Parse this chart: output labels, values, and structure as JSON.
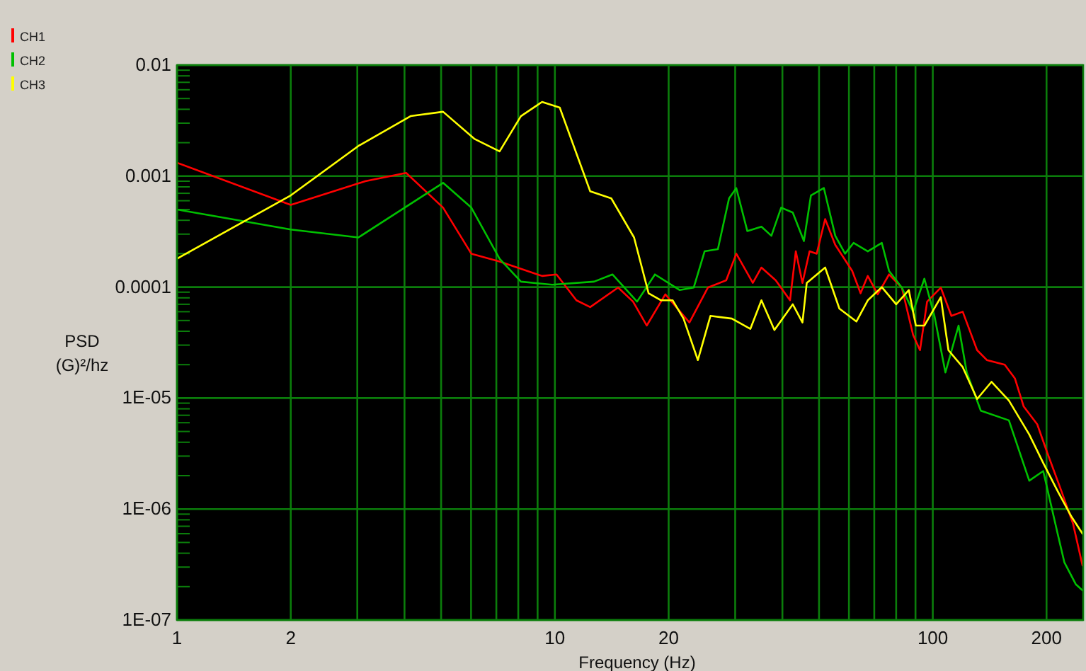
{
  "chart_data": {
    "type": "line",
    "xlabel": "Frequency (Hz)",
    "ylabel": "PSD\n(G)²/hz",
    "log": "xy",
    "grid": true,
    "legend": "top left",
    "xlim": [
      1,
      250
    ],
    "ylim": [
      1e-07,
      0.01
    ],
    "xticks": [
      1,
      2,
      {
        "value": 3,
        "label": null
      },
      {
        "value": 4,
        "label": null
      },
      {
        "value": 5,
        "label": null
      },
      {
        "value": 6,
        "label": null
      },
      {
        "value": 7,
        "label": null
      },
      {
        "value": 8,
        "label": null
      },
      {
        "value": 9,
        "label": null
      },
      10,
      20,
      {
        "value": 30,
        "label": null
      },
      {
        "value": 40,
        "label": null
      },
      {
        "value": 50,
        "label": null
      },
      {
        "value": 60,
        "label": null
      },
      {
        "value": 70,
        "label": null
      },
      {
        "value": 80,
        "label": null
      },
      {
        "value": 90,
        "label": null
      },
      100,
      200
    ],
    "yticks": [
      {
        "value": 1e-07,
        "label": "1E-07"
      },
      {
        "value": 2e-07,
        "label": null
      },
      {
        "value": 3e-07,
        "label": null
      },
      {
        "value": 4e-07,
        "label": null
      },
      {
        "value": 5e-07,
        "label": null
      },
      {
        "value": 6e-07,
        "label": null
      },
      {
        "value": 7e-07,
        "label": null
      },
      {
        "value": 8e-07,
        "label": null
      },
      {
        "value": 9e-07,
        "label": null
      },
      {
        "value": 1e-06,
        "label": "1E-06"
      },
      {
        "value": 2e-06,
        "label": null
      },
      {
        "value": 3e-06,
        "label": null
      },
      {
        "value": 4e-06,
        "label": null
      },
      {
        "value": 5e-06,
        "label": null
      },
      {
        "value": 6e-06,
        "label": null
      },
      {
        "value": 7e-06,
        "label": null
      },
      {
        "value": 8e-06,
        "label": null
      },
      {
        "value": 9e-06,
        "label": null
      },
      {
        "value": 1e-05,
        "label": "1E-05"
      },
      {
        "value": 2e-05,
        "label": null
      },
      {
        "value": 3e-05,
        "label": null
      },
      {
        "value": 4e-05,
        "label": null
      },
      {
        "value": 5e-05,
        "label": null
      },
      {
        "value": 6e-05,
        "label": null
      },
      {
        "value": 7e-05,
        "label": null
      },
      {
        "value": 8e-05,
        "label": null
      },
      {
        "value": 9e-05,
        "label": null
      },
      0.0001,
      {
        "value": 0.0002,
        "label": null
      },
      {
        "value": 0.0003,
        "label": null
      },
      {
        "value": 0.0004,
        "label": null
      },
      {
        "value": 0.0005,
        "label": null
      },
      {
        "value": 0.0006,
        "label": null
      },
      {
        "value": 0.0007,
        "label": null
      },
      {
        "value": 0.0008,
        "label": null
      },
      {
        "value": 0.0009,
        "label": null
      },
      0.001,
      {
        "value": 0.002,
        "label": null
      },
      {
        "value": 0.003,
        "label": null
      },
      {
        "value": 0.004,
        "label": null
      },
      {
        "value": 0.005,
        "label": null
      },
      {
        "value": 0.006,
        "label": null
      },
      {
        "value": 0.007,
        "label": null
      },
      {
        "value": 0.008,
        "label": null
      },
      {
        "value": 0.009,
        "label": null
      },
      0.01
    ],
    "series": [
      {
        "name": "CH1",
        "color": "#ff0000",
        "x": [
          1,
          2.0,
          3.15,
          4.04,
          5.06,
          6.01,
          7.14,
          9.25,
          10.1,
          11.4,
          12.4,
          14.7,
          16.1,
          17.5,
          19.6,
          22.7,
          25.4,
          28.4,
          30.2,
          33.4,
          35.2,
          38.4,
          41.9,
          43.4,
          45.2,
          47.2,
          49.3,
          51.9,
          55.2,
          61.2,
          64.4,
          67.3,
          71.5,
          76.6,
          82.8,
          88.7,
          92.5,
          96.6,
          105,
          112,
          120,
          131,
          139,
          155,
          165,
          174,
          189,
          201,
          219,
          235,
          249
        ],
        "values": [
          0.00132,
          0.00055,
          0.0009,
          0.00107,
          0.00052,
          0.0002,
          0.00017,
          0.000126,
          0.00013,
          7.6e-05,
          6.6e-05,
          9.9e-05,
          7.4e-05,
          4.5e-05,
          8.6e-05,
          4.8e-05,
          9.9e-05,
          0.000115,
          0.0002,
          0.000109,
          0.00015,
          0.000115,
          7.6e-05,
          0.00021,
          0.000109,
          0.00021,
          0.0002,
          0.00041,
          0.00024,
          0.00014,
          8.8e-05,
          0.000126,
          8.6e-05,
          0.00013,
          9.9e-05,
          3.7e-05,
          2.7e-05,
          7.4e-05,
          9.9e-05,
          5.5e-05,
          6e-05,
          2.7e-05,
          2.2e-05,
          2e-05,
          1.5e-05,
          8.4e-06,
          5.8e-06,
          3.2e-06,
          1.45e-06,
          7.4e-07,
          3.1e-07
        ]
      },
      {
        "name": "CH2",
        "color": "#00c000",
        "x": [
          1,
          1.24,
          2.0,
          3.02,
          5.06,
          6.01,
          7.14,
          8.13,
          9.84,
          12.7,
          14.2,
          16.5,
          18.4,
          21.4,
          23.3,
          24.9,
          27.0,
          28.9,
          30.2,
          32.3,
          35.2,
          37.4,
          39.7,
          42.6,
          45.6,
          47.6,
          51.5,
          55.2,
          58.6,
          61.7,
          67.3,
          73.3,
          76.6,
          82.8,
          88.7,
          95.0,
          101,
          108,
          117,
          123,
          134,
          159,
          180,
          196,
          214,
          223,
          239,
          249
        ],
        "values": [
          0.0005,
          0.00044,
          0.00033,
          0.00028,
          0.00087,
          0.00052,
          0.00018,
          0.000112,
          0.000105,
          0.000112,
          0.00013,
          7.4e-05,
          0.00013,
          9.4e-05,
          9.9e-05,
          0.00021,
          0.00022,
          0.00063,
          0.00078,
          0.00032,
          0.00035,
          0.00029,
          0.00052,
          0.00047,
          0.00026,
          0.00067,
          0.00078,
          0.00029,
          0.0002,
          0.00025,
          0.00021,
          0.00025,
          0.00014,
          9.9e-05,
          6e-05,
          0.000119,
          5.5e-05,
          1.7e-05,
          4.5e-05,
          1.7e-05,
          7.7e-06,
          6.3e-06,
          1.8e-06,
          2.2e-06,
          6e-07,
          3.3e-07,
          2.1e-07,
          1.85e-07
        ]
      },
      {
        "name": "CH3",
        "color": "#ffff00",
        "x": [
          1,
          2.0,
          3.02,
          4.15,
          5.06,
          6.12,
          7.14,
          8.13,
          9.25,
          10.3,
          12.4,
          14.1,
          16.2,
          17.7,
          19.1,
          20.5,
          21.9,
          23.9,
          25.8,
          29.4,
          32.9,
          35.2,
          38.1,
          42.6,
          45.2,
          46.4,
          51.9,
          56.6,
          62.8,
          67.3,
          73.3,
          80.0,
          86.4,
          90.2,
          95.0,
          105,
          110,
          120,
          131,
          143,
          159,
          180,
          196,
          214,
          233,
          249
        ],
        "values": [
          0.00018,
          0.00067,
          0.00187,
          0.00347,
          0.0038,
          0.00217,
          0.00167,
          0.00347,
          0.00466,
          0.00414,
          0.00073,
          0.00063,
          0.00028,
          8.8e-05,
          7.6e-05,
          7.6e-05,
          5.2e-05,
          2.2e-05,
          5.5e-05,
          5.2e-05,
          4.2e-05,
          7.6e-05,
          4.1e-05,
          7e-05,
          4.8e-05,
          0.000109,
          0.00015,
          6.4e-05,
          4.9e-05,
          7.6e-05,
          0.0001,
          7e-05,
          9.4e-05,
          4.5e-05,
          4.5e-05,
          8.1e-05,
          2.7e-05,
          1.9e-05,
          9.8e-06,
          1.4e-05,
          9.5e-06,
          4.7e-06,
          2.6e-06,
          1.45e-06,
          8.5e-07,
          6e-07
        ]
      }
    ]
  }
}
